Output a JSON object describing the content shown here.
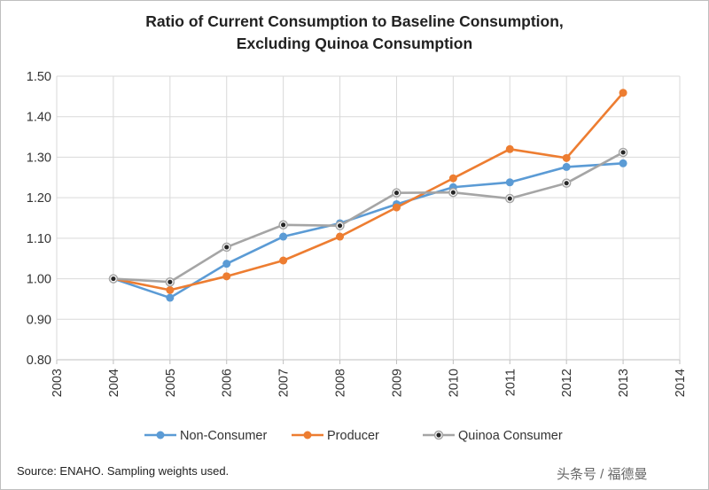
{
  "chart_data": {
    "type": "line",
    "title_line1": "Ratio of Current Consumption to Baseline Consumption,",
    "title_line2": "Excluding Quinoa Consumption",
    "x": [
      2004,
      2005,
      2006,
      2007,
      2008,
      2009,
      2010,
      2011,
      2012,
      2013
    ],
    "xlim": [
      2003,
      2014
    ],
    "ylim": [
      0.8,
      1.5
    ],
    "x_ticks": [
      "2003",
      "2004",
      "2005",
      "2006",
      "2007",
      "2008",
      "2009",
      "2010",
      "2011",
      "2012",
      "2013",
      "2014"
    ],
    "y_ticks": [
      "0.80",
      "0.90",
      "1.00",
      "1.10",
      "1.20",
      "1.30",
      "1.40",
      "1.50"
    ],
    "grid": true,
    "legend_position": "bottom",
    "series": [
      {
        "name": "Non-Consumer",
        "color": "#5b9bd5",
        "marker": "circle",
        "values": [
          1.0,
          0.953,
          1.037,
          1.104,
          1.137,
          1.184,
          1.226,
          1.238,
          1.276,
          1.285
        ]
      },
      {
        "name": "Producer",
        "color": "#ed7d31",
        "marker": "circle",
        "values": [
          1.0,
          0.972,
          1.006,
          1.045,
          1.104,
          1.176,
          1.248,
          1.32,
          1.298,
          1.459
        ]
      },
      {
        "name": "Quinoa Consumer",
        "color": "#a5a5a5",
        "marker": "dot",
        "values": [
          1.0,
          0.992,
          1.078,
          1.133,
          1.131,
          1.212,
          1.213,
          1.198,
          1.236,
          1.312
        ]
      }
    ]
  },
  "footer": {
    "source": "Source: ENAHO. Sampling weights used.",
    "watermark": "头条号 / 福德曼"
  }
}
